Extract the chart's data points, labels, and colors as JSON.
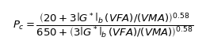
{
  "equation": "$P_c = \\dfrac{\\left(20+3\\left|G^*\\right|_b\\,(VFA)/(VMA)\\right)^{0.58}}{650+\\left(3\\left|G^*\\right|_b\\,(VFA)/(VMA)\\right)^{0.58}}$",
  "fontsize": 9.5,
  "background_color": "#ffffff",
  "text_color": "#000000",
  "figsize": [
    2.6,
    0.66
  ],
  "dpi": 100
}
